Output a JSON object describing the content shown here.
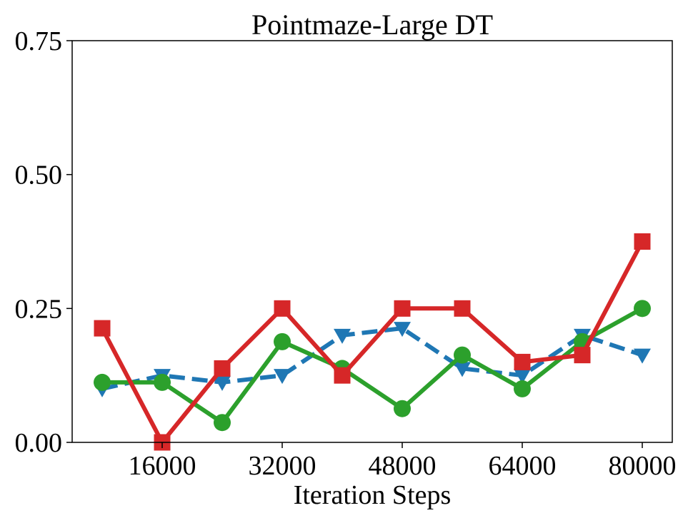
{
  "chart_data": {
    "type": "line",
    "title": "Pointmaze-Large DT",
    "xlabel": "Iteration Steps",
    "ylabel": "",
    "xlim": [
      4000,
      84000
    ],
    "ylim": [
      0,
      0.75
    ],
    "x_ticks": [
      16000,
      32000,
      48000,
      64000,
      80000
    ],
    "x_tick_labels": [
      "16000",
      "32000",
      "48000",
      "64000",
      "80000"
    ],
    "y_ticks": [
      0,
      0.25,
      0.5,
      0.75
    ],
    "y_tick_labels": [
      "0.00",
      "0.25",
      "0.50",
      "0.75"
    ],
    "grid": false,
    "legend": null,
    "x": [
      8000,
      16000,
      24000,
      32000,
      40000,
      48000,
      56000,
      64000,
      72000,
      80000
    ],
    "series": [
      {
        "name": "blue-dashed-triangle",
        "color": "#1f77b4",
        "line_style": "dashed",
        "marker": "triangle-down",
        "values": [
          0.1,
          0.125,
          0.112,
          0.125,
          0.2,
          0.213,
          0.138,
          0.125,
          0.2,
          0.163
        ]
      },
      {
        "name": "green-solid-circle",
        "color": "#2ca02c",
        "line_style": "solid",
        "marker": "circle",
        "values": [
          0.112,
          0.112,
          0.037,
          0.188,
          0.138,
          0.063,
          0.163,
          0.1,
          0.188,
          0.25
        ]
      },
      {
        "name": "red-solid-square",
        "color": "#d62728",
        "line_style": "solid",
        "marker": "square",
        "values": [
          0.213,
          0.0,
          0.138,
          0.25,
          0.125,
          0.25,
          0.25,
          0.15,
          0.163,
          0.375
        ]
      }
    ]
  }
}
